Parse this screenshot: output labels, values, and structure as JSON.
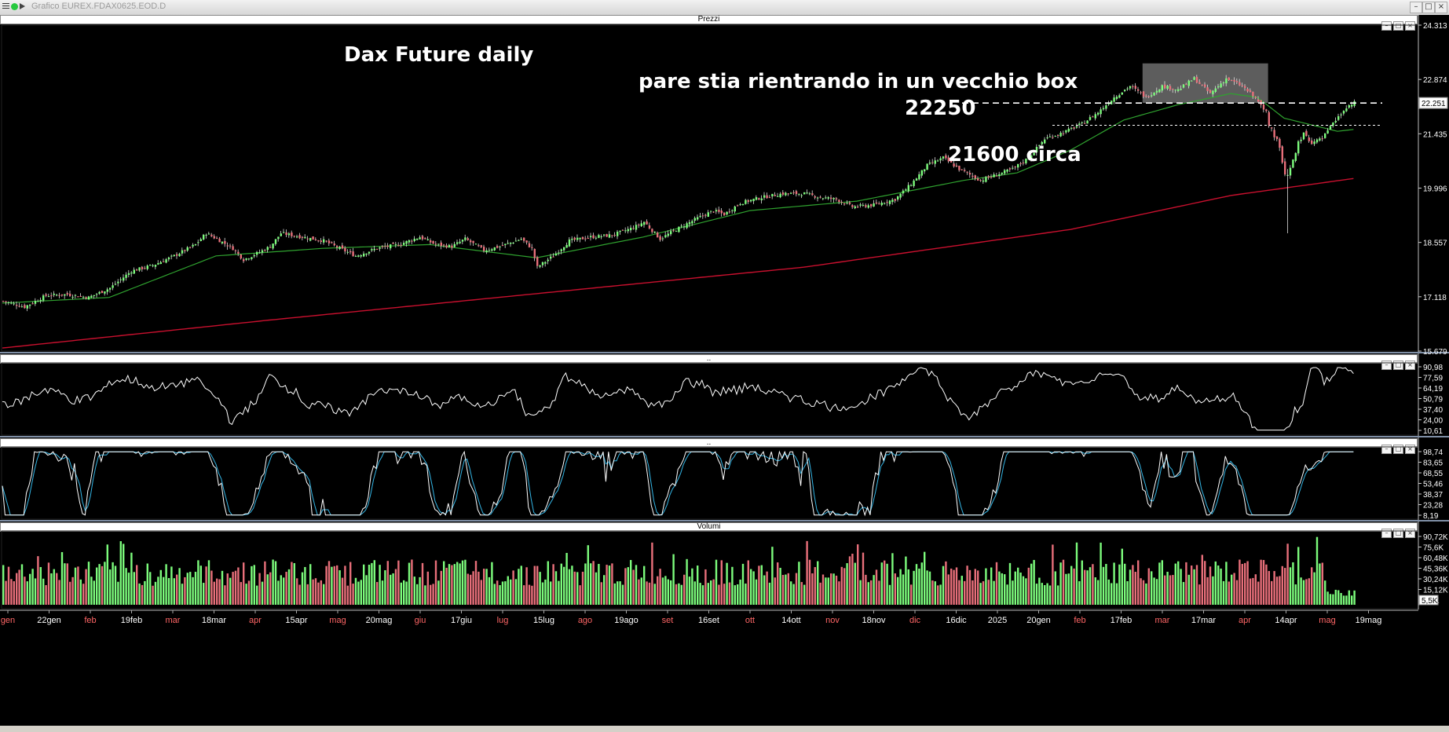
{
  "window": {
    "title": "Grafico EUREX.FDAX0625.EOD.D"
  },
  "panes": {
    "price": {
      "title": "Prezzi"
    },
    "osc1": {
      "title": ".."
    },
    "osc2": {
      "title": ".."
    },
    "volume": {
      "title": "Volumi"
    }
  },
  "annotations": {
    "chart_title": "Dax Future daily",
    "comment": "pare stia rientrando in un vecchio box",
    "level_upper": "22250",
    "level_lower": "21600 circa"
  },
  "colors": {
    "up": "#7CFC7C",
    "down": "#E86F7A",
    "ma_fast": "#2FA22F",
    "ma_slow": "#C8102E",
    "stoch_k": "#FFFFFF",
    "stoch_d": "#33B5E5",
    "box": "#A9A9A9"
  },
  "chart_data": [
    {
      "type": "candlestick",
      "pane": "price",
      "title": "Dax Future daily",
      "yticks": [
        "24.313",
        "22.874",
        "22.251",
        "21.435",
        "19.996",
        "18.557",
        "17.118",
        "15.679"
      ],
      "ylim": [
        15679,
        24313
      ],
      "xticks": [
        "gen",
        "22gen",
        "feb",
        "19feb",
        "mar",
        "18mar",
        "apr",
        "15apr",
        "mag",
        "20mag",
        "giu",
        "17giu",
        "lug",
        "15lug",
        "ago",
        "19ago",
        "set",
        "16set",
        "ott",
        "14ott",
        "nov",
        "18nov",
        "dic",
        "16dic",
        "2025",
        "20gen",
        "feb",
        "17feb",
        "mar",
        "17mar",
        "apr",
        "14apr",
        "mag",
        "19mag"
      ],
      "xtick_colors": [
        "#ff6666",
        "#ffffff",
        "#ff6666",
        "#ffffff",
        "#ff6666",
        "#ffffff",
        "#ff6666",
        "#ffffff",
        "#ff6666",
        "#ffffff",
        "#ff6666",
        "#ffffff",
        "#ff6666",
        "#ffffff",
        "#ff6666",
        "#ffffff",
        "#ff6666",
        "#ffffff",
        "#ff6666",
        "#ffffff",
        "#ff6666",
        "#ffffff",
        "#ff6666",
        "#ffffff",
        "#ffffff",
        "#ffffff",
        "#ff6666",
        "#ffffff",
        "#ff6666",
        "#ffffff",
        "#ff6666",
        "#ffffff",
        "#ff6666",
        "#ffffff"
      ],
      "close_keypoints": [
        [
          0,
          17000
        ],
        [
          8,
          16850
        ],
        [
          16,
          17150
        ],
        [
          24,
          17180
        ],
        [
          32,
          17100
        ],
        [
          40,
          17350
        ],
        [
          48,
          17800
        ],
        [
          56,
          17950
        ],
        [
          64,
          18200
        ],
        [
          72,
          18500
        ],
        [
          76,
          18800
        ],
        [
          80,
          18650
        ],
        [
          86,
          18400
        ],
        [
          90,
          18100
        ],
        [
          96,
          18300
        ],
        [
          100,
          18450
        ],
        [
          104,
          18800
        ],
        [
          112,
          18700
        ],
        [
          120,
          18600
        ],
        [
          126,
          18400
        ],
        [
          132,
          18200
        ],
        [
          140,
          18400
        ],
        [
          148,
          18500
        ],
        [
          156,
          18700
        ],
        [
          162,
          18500
        ],
        [
          168,
          18450
        ],
        [
          173,
          18650
        ],
        [
          180,
          18350
        ],
        [
          186,
          18450
        ],
        [
          194,
          18650
        ],
        [
          198,
          18400
        ],
        [
          200,
          17900
        ],
        [
          206,
          18200
        ],
        [
          212,
          18600
        ],
        [
          220,
          18700
        ],
        [
          228,
          18750
        ],
        [
          236,
          18950
        ],
        [
          240,
          19100
        ],
        [
          246,
          18650
        ],
        [
          252,
          18900
        ],
        [
          260,
          19200
        ],
        [
          266,
          19400
        ],
        [
          270,
          19300
        ],
        [
          276,
          19600
        ],
        [
          284,
          19750
        ],
        [
          292,
          19850
        ],
        [
          300,
          19850
        ],
        [
          306,
          19750
        ],
        [
          312,
          19700
        ],
        [
          318,
          19500
        ],
        [
          326,
          19550
        ],
        [
          334,
          19700
        ],
        [
          340,
          20100
        ],
        [
          346,
          20600
        ],
        [
          352,
          20800
        ],
        [
          358,
          20500
        ],
        [
          366,
          20200
        ],
        [
          372,
          20350
        ],
        [
          378,
          20500
        ],
        [
          384,
          20800
        ],
        [
          390,
          21300
        ],
        [
          398,
          21500
        ],
        [
          404,
          21700
        ],
        [
          410,
          22000
        ],
        [
          416,
          22400
        ],
        [
          422,
          22700
        ],
        [
          428,
          22400
        ],
        [
          434,
          22700
        ],
        [
          440,
          22600
        ],
        [
          446,
          22900
        ],
        [
          452,
          22500
        ],
        [
          458,
          22900
        ],
        [
          464,
          22700
        ],
        [
          470,
          22300
        ],
        [
          474,
          21800
        ],
        [
          478,
          21000
        ],
        [
          481,
          20300
        ],
        [
          484,
          20900
        ],
        [
          487,
          21450
        ],
        [
          490,
          21200
        ],
        [
          494,
          21300
        ],
        [
          498,
          21700
        ],
        [
          502,
          22050
        ],
        [
          506,
          22251
        ]
      ],
      "ma_fast_keypoints": [
        [
          0,
          16950
        ],
        [
          40,
          17100
        ],
        [
          80,
          18200
        ],
        [
          120,
          18400
        ],
        [
          160,
          18500
        ],
        [
          200,
          18150
        ],
        [
          240,
          18700
        ],
        [
          280,
          19400
        ],
        [
          320,
          19650
        ],
        [
          360,
          20200
        ],
        [
          380,
          20400
        ],
        [
          400,
          21000
        ],
        [
          420,
          21800
        ],
        [
          440,
          22200
        ],
        [
          460,
          22500
        ],
        [
          470,
          22400
        ],
        [
          480,
          21850
        ],
        [
          500,
          21500
        ],
        [
          506,
          21550
        ]
      ],
      "ma_slow_keypoints": [
        [
          0,
          15760
        ],
        [
          100,
          16500
        ],
        [
          200,
          17200
        ],
        [
          300,
          17900
        ],
        [
          400,
          18900
        ],
        [
          460,
          19800
        ],
        [
          506,
          20250
        ]
      ],
      "levels": [
        {
          "label": "22250",
          "value": 22250
        },
        {
          "label": "21600 circa",
          "value": 21660
        }
      ],
      "box": {
        "from_bar": 427,
        "to_bar": 474,
        "low": 22251,
        "high": 23300
      }
    },
    {
      "type": "line",
      "pane": "osc1",
      "yticks": [
        "90,98",
        "77,59",
        "64,19",
        "50,79",
        "37,40",
        "24,00",
        "10,61"
      ],
      "ylim": [
        10.61,
        90.98
      ],
      "series": [
        {
          "values_range": [
            10.61,
            90.98
          ]
        }
      ]
    },
    {
      "type": "line",
      "pane": "osc2",
      "yticks": [
        "98,74",
        "83,65",
        "68,55",
        "53,46",
        "38,37",
        "23,28",
        "8,19"
      ],
      "ylim": [
        8.19,
        98.74
      ],
      "series": [
        {
          "values_range": [
            8.19,
            98.74
          ]
        },
        {
          "values_range": [
            8.19,
            98.74
          ]
        }
      ]
    },
    {
      "type": "bar",
      "pane": "volume",
      "yticks": [
        "90,72K",
        "75,6K",
        "60,48K",
        "45,36K",
        "30,24K",
        "15,12K",
        "5,5K"
      ],
      "ylim": [
        0,
        90720
      ],
      "last_value": "5,5K"
    }
  ]
}
